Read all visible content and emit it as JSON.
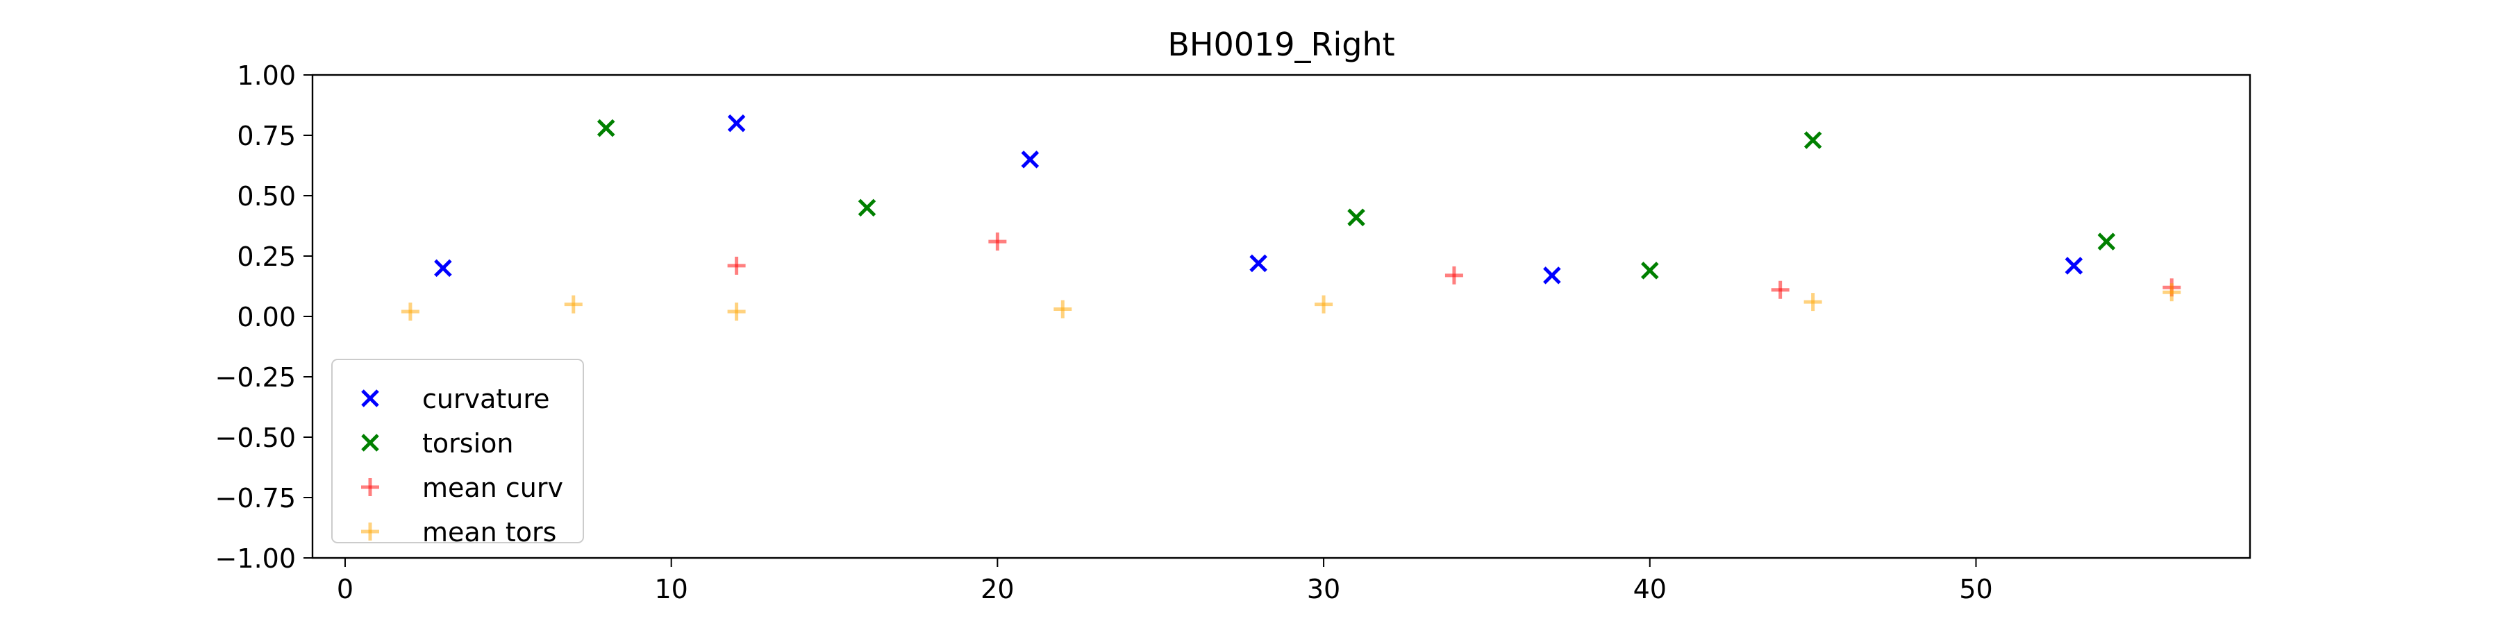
{
  "chart_data": {
    "type": "scatter",
    "title": "BH0019_Right",
    "xlabel": "",
    "ylabel": "",
    "xlim": [
      -1,
      58.4
    ],
    "ylim": [
      -1.0,
      1.0
    ],
    "xticks": [
      0,
      10,
      20,
      30,
      40,
      50
    ],
    "xtick_labels": [
      "0",
      "10",
      "20",
      "30",
      "40",
      "50"
    ],
    "yticks": [
      1.0,
      0.75,
      0.5,
      0.25,
      0.0,
      -0.25,
      -0.5,
      -0.75,
      -1.0
    ],
    "ytick_labels": [
      "1.00",
      "0.75",
      "0.50",
      "0.25",
      "0.00",
      "−0.25",
      "−0.50",
      "−0.75",
      "−1.00"
    ],
    "grid": false,
    "legend_position": "lower-left",
    "series": [
      {
        "name": "curvature",
        "marker": "x",
        "color": "#0000ff",
        "alpha": 1.0,
        "points": [
          [
            3,
            0.2
          ],
          [
            12,
            0.8
          ],
          [
            21,
            0.65
          ],
          [
            28,
            0.22
          ],
          [
            37,
            0.17
          ],
          [
            53,
            0.21
          ]
        ]
      },
      {
        "name": "torsion",
        "marker": "x",
        "color": "#008000",
        "alpha": 1.0,
        "points": [
          [
            8,
            0.78
          ],
          [
            16,
            0.45
          ],
          [
            31,
            0.41
          ],
          [
            40,
            0.19
          ],
          [
            45,
            0.73
          ],
          [
            54,
            0.31
          ]
        ]
      },
      {
        "name": "mean curv",
        "marker": "+",
        "color": "#ff0000",
        "alpha": 0.5,
        "points": [
          [
            12,
            0.21
          ],
          [
            20,
            0.31
          ],
          [
            34,
            0.17
          ],
          [
            44,
            0.11
          ],
          [
            56,
            0.12
          ]
        ]
      },
      {
        "name": "mean tors",
        "marker": "+",
        "color": "#ffa500",
        "alpha": 0.5,
        "points": [
          [
            2,
            0.02
          ],
          [
            7,
            0.05
          ],
          [
            12,
            0.02
          ],
          [
            22,
            0.03
          ],
          [
            30,
            0.05
          ],
          [
            45,
            0.06
          ],
          [
            56,
            0.1
          ]
        ]
      }
    ]
  }
}
